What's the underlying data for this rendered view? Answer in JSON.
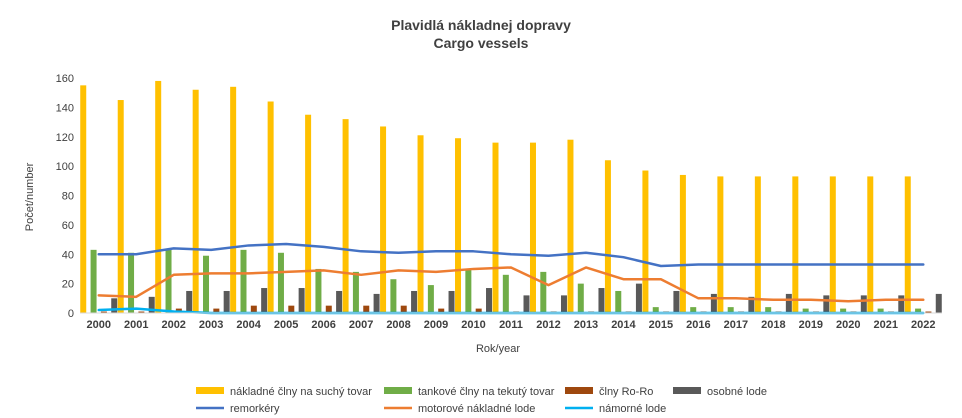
{
  "chart_data": {
    "type": "bar",
    "title": "Plavidlá nákladnej dopravy",
    "subtitle": "Cargo vessels",
    "xlabel": "Rok/year",
    "ylabel": "Počet/number",
    "ylim": [
      0,
      160
    ],
    "yticks": [
      0,
      20,
      40,
      60,
      80,
      100,
      120,
      140,
      160
    ],
    "grid": false,
    "legend_position": "bottom",
    "categories": [
      "2000",
      "2001",
      "2002",
      "2003",
      "2004",
      "2005",
      "2006",
      "2007",
      "2008",
      "2009",
      "2010",
      "2011",
      "2012",
      "2013",
      "2014",
      "2015",
      "2016",
      "2017",
      "2018",
      "2019",
      "2020",
      "2021",
      "2022"
    ],
    "bar_series": [
      {
        "name": "nákladné člny na suchý tovar",
        "color": "#FFC000",
        "values": [
          155,
          145,
          158,
          152,
          154,
          144,
          135,
          132,
          127,
          121,
          119,
          116,
          116,
          118,
          104,
          97,
          94,
          93,
          93,
          93,
          93,
          93,
          93
        ]
      },
      {
        "name": "tankové člny na tekutý tovar",
        "color": "#70AD47",
        "values": [
          43,
          41,
          43,
          39,
          43,
          41,
          30,
          28,
          23,
          19,
          30,
          26,
          28,
          20,
          15,
          4,
          4,
          4,
          4,
          3,
          3,
          3,
          3
        ]
      },
      {
        "name": "člny Ro-Ro",
        "color": "#9E480E",
        "values": [
          1,
          1,
          3,
          3,
          5,
          5,
          5,
          5,
          5,
          3,
          3,
          1,
          1,
          1,
          1,
          1,
          1,
          1,
          1,
          1,
          1,
          1,
          1
        ]
      },
      {
        "name": "osobné lode",
        "color": "#595959",
        "values": [
          10,
          11,
          15,
          15,
          17,
          17,
          15,
          13,
          15,
          15,
          17,
          12,
          12,
          17,
          20,
          15,
          13,
          11,
          13,
          12,
          12,
          12,
          13
        ]
      }
    ],
    "line_series": [
      {
        "name": "remorkéry",
        "color": "#4472C4",
        "values": [
          40,
          40,
          44,
          43,
          46,
          47,
          45,
          42,
          41,
          42,
          42,
          40,
          39,
          41,
          38,
          32,
          33,
          33,
          33,
          33,
          33,
          33,
          33
        ]
      },
      {
        "name": "motorové nákladné lode",
        "color": "#ED7D31",
        "values": [
          12,
          11,
          26,
          27,
          27,
          28,
          29,
          26,
          29,
          28,
          30,
          31,
          19,
          31,
          23,
          23,
          10,
          10,
          9,
          9,
          8,
          9,
          9
        ]
      },
      {
        "name": "námorné lode",
        "color": "#00B0F0",
        "values": [
          2,
          3,
          1,
          0,
          0,
          0,
          0,
          0,
          0,
          0,
          0,
          0,
          0,
          0,
          0,
          0,
          0,
          0,
          0,
          0,
          0,
          0,
          0
        ]
      }
    ]
  }
}
